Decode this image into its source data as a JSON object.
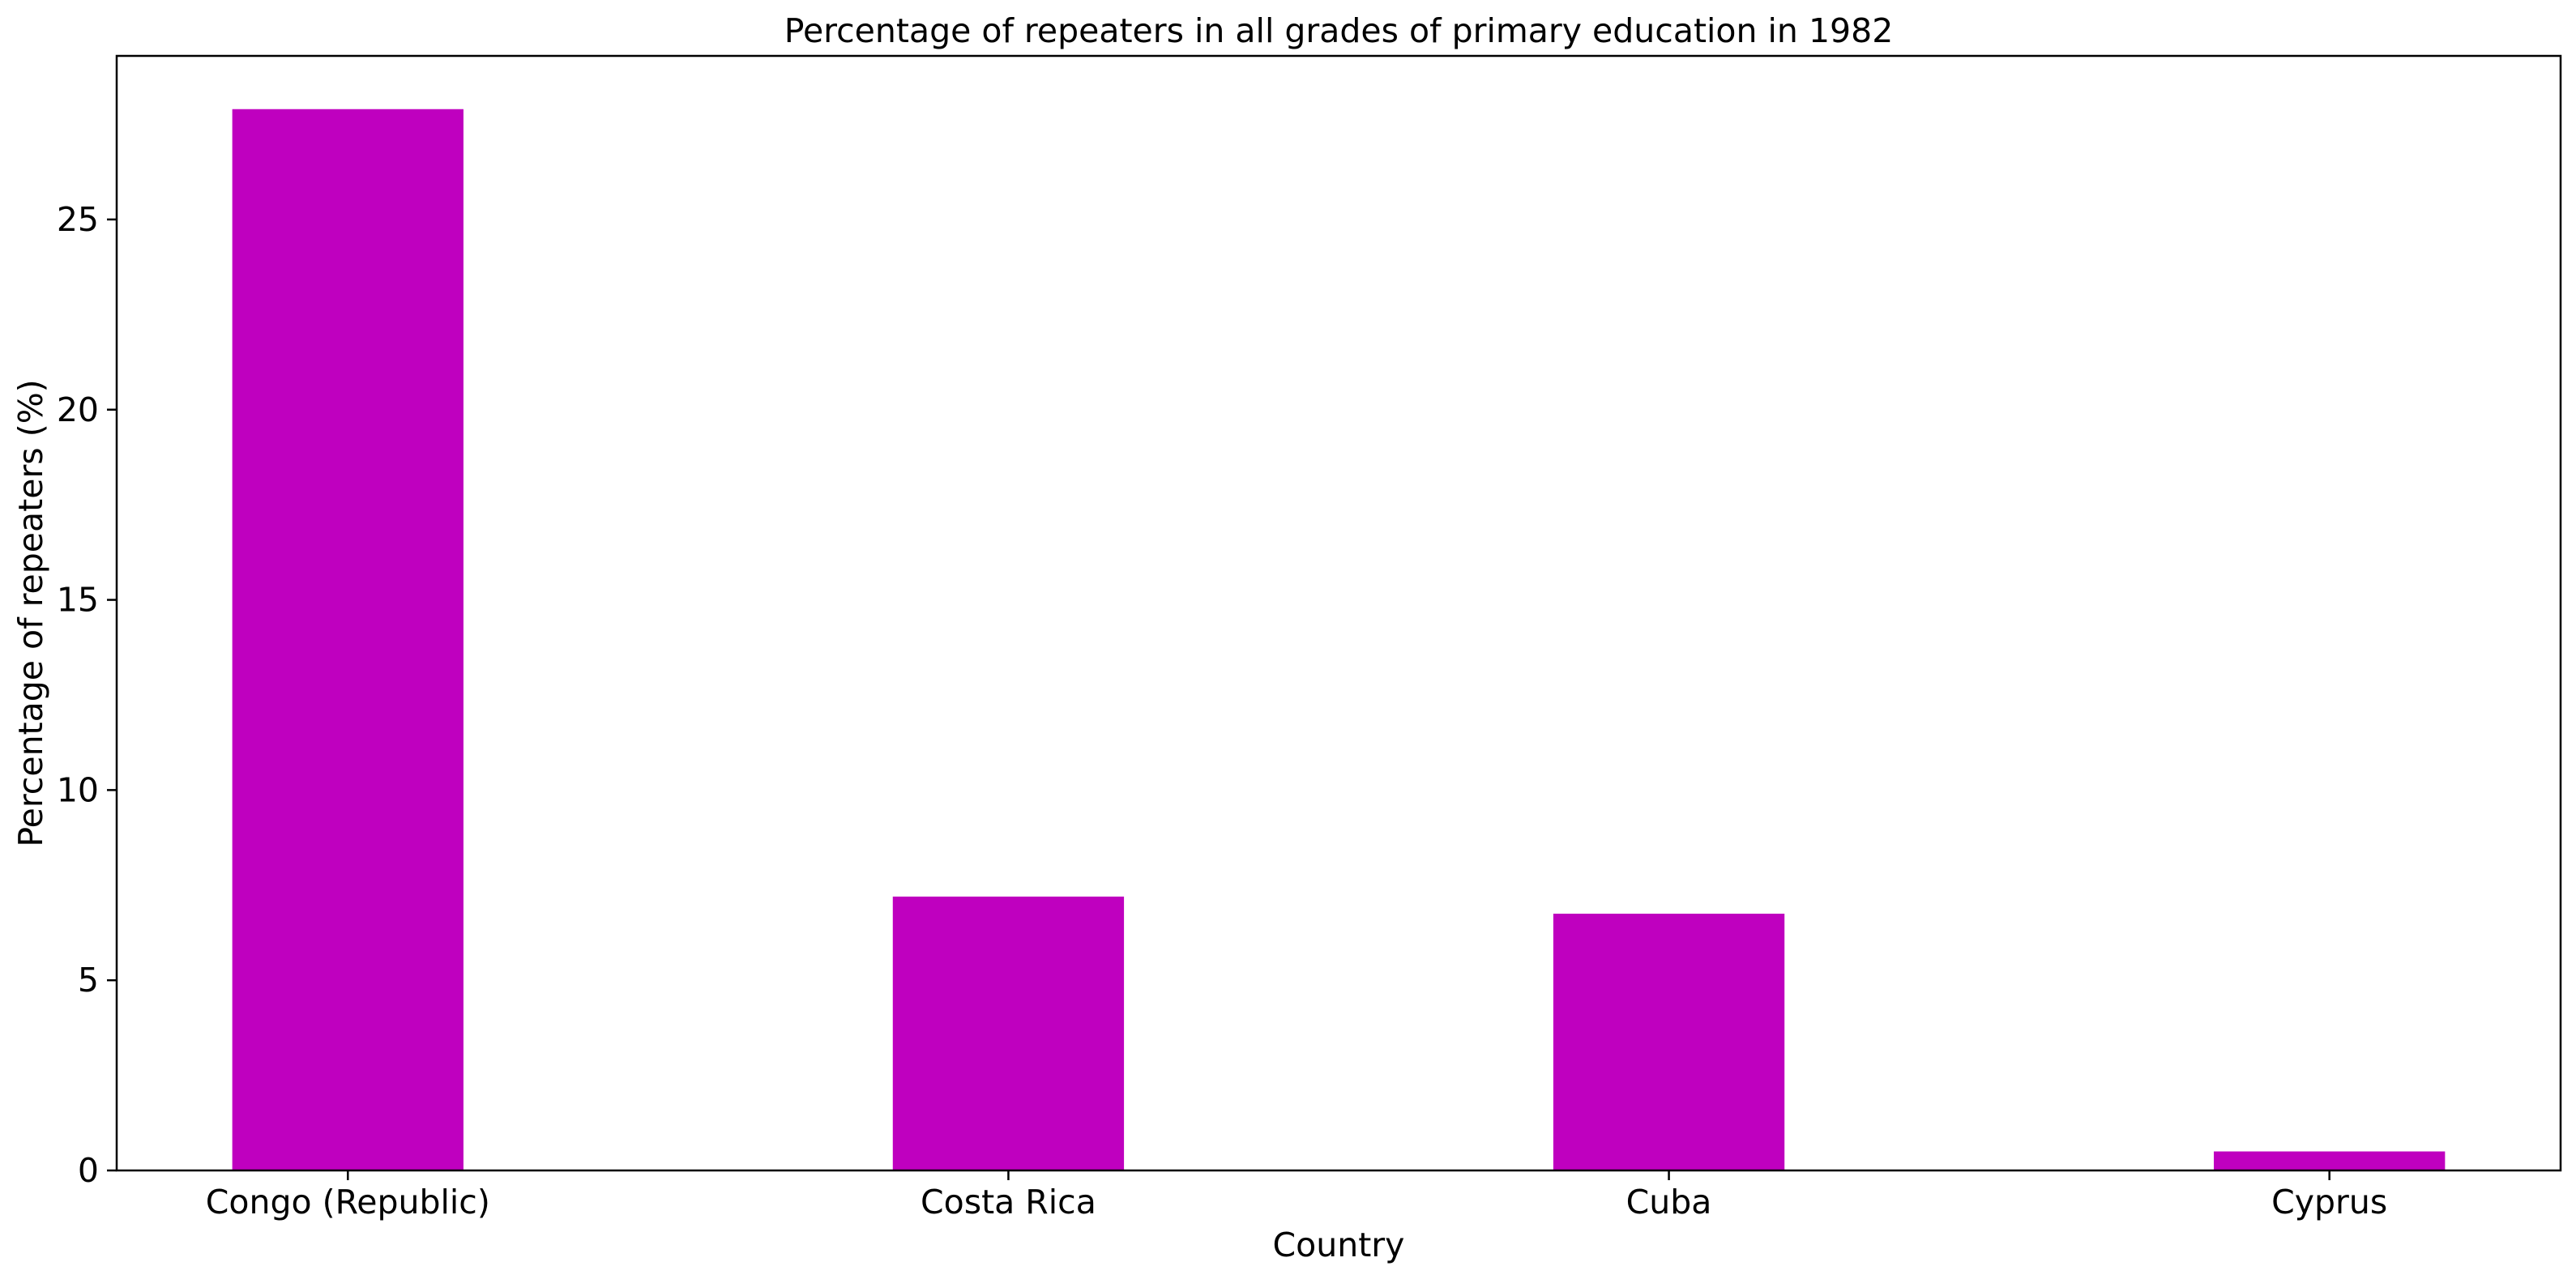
{
  "chart_data": {
    "type": "bar",
    "title": "Percentage of repeaters in all grades of primary education in 1982",
    "xlabel": "Country",
    "ylabel": "Percentage of repeaters (%)",
    "categories": [
      "Congo (Republic)",
      "Costa Rica",
      "Cuba",
      "Cyprus"
    ],
    "values": [
      27.9,
      7.2,
      6.75,
      0.5
    ],
    "ylim": [
      0,
      29.3
    ],
    "yticks": [
      0,
      5,
      10,
      15,
      20,
      25
    ],
    "bar_color": "#bf00bf",
    "grid": false,
    "legend": "none"
  }
}
